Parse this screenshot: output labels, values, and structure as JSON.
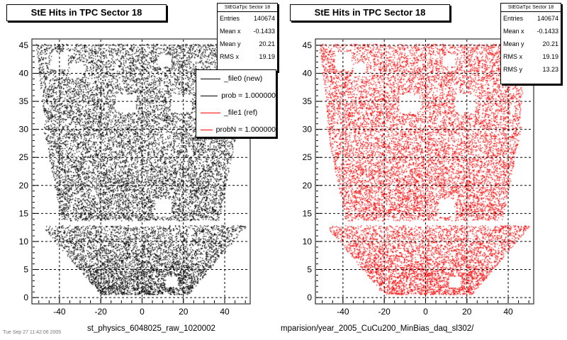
{
  "colors": {
    "new": "#000000",
    "ref": "#ff0000",
    "frame": "#c8c8c8"
  },
  "chart_data": [
    {
      "type": "scatter",
      "title": "StE Hits in TPC Sector 18",
      "xlim": [
        -53,
        52
      ],
      "ylim": [
        -1,
        46
      ],
      "xticks": [
        -40,
        -20,
        0,
        20,
        40
      ],
      "yticks": [
        0,
        5,
        10,
        15,
        20,
        25,
        30,
        35,
        40,
        45
      ],
      "grid": true,
      "marker_color": "#000000",
      "stats": {
        "name": "StEGaTpc Sector 18",
        "rows": [
          {
            "label": "Entries",
            "value": "140674"
          },
          {
            "label": "Mean x",
            "value": "-0.1433"
          },
          {
            "label": "Mean y",
            "value": "20.21"
          },
          {
            "label": "RMS x",
            "value": "19.19"
          }
        ]
      },
      "legend": {
        "position": "top-right",
        "entries": [
          {
            "label": "_file0 (new)",
            "color": "#000000"
          },
          {
            "label": "prob = 1.000000",
            "color": "#000000"
          },
          {
            "label": "_file1 (ref)",
            "color": "#ff0000"
          },
          {
            "label": "probN = 1.000000",
            "color": "#ff0000"
          }
        ]
      },
      "file_label": "st_physics_6048025_raw_1020002"
    },
    {
      "type": "scatter",
      "title": "StE Hits in TPC Sector 18",
      "xlim": [
        -53,
        52
      ],
      "ylim": [
        -1,
        46
      ],
      "xticks": [
        -40,
        -20,
        0,
        20,
        40
      ],
      "yticks": [
        0,
        5,
        10,
        15,
        20,
        25,
        30,
        35,
        40,
        45
      ],
      "grid": true,
      "marker_color": "#ff0000",
      "stats": {
        "name": "StEGaTpc Sector 18",
        "rows": [
          {
            "label": "Entries",
            "value": "140674"
          },
          {
            "label": "Mean x",
            "value": "-0.1433"
          },
          {
            "label": "Mean y",
            "value": "20.21"
          },
          {
            "label": "RMS x",
            "value": "19.19"
          },
          {
            "label": "RMS y",
            "value": "13.23"
          }
        ]
      },
      "file_label": "mparision/year_2005_CuCu200_MinBias_daq_sl302/"
    }
  ],
  "stamp": "Tue Sep 27 11:42:06 2005"
}
